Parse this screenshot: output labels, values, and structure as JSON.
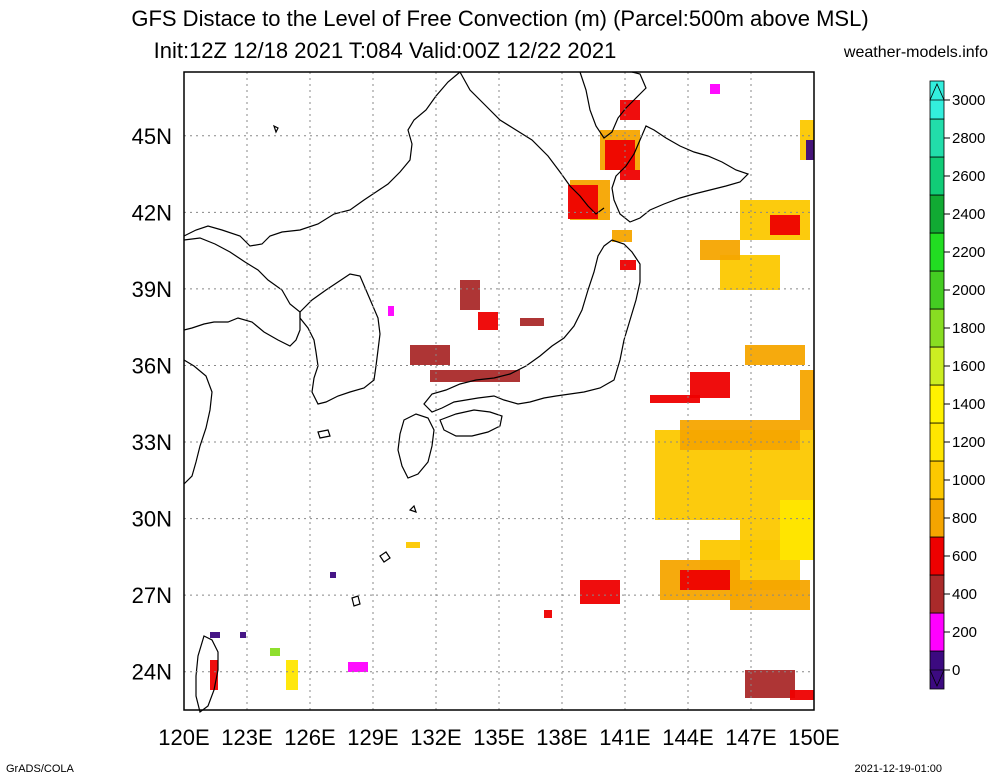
{
  "header": {
    "title_line1": "GFS Distace to the Level of Free Convection (m) (Parcel:500m above MSL)",
    "title_line2": "Init:12Z 12/18 2021 T:084 Valid:00Z 12/22 2021",
    "site": "weather-models.info"
  },
  "footer": {
    "left": "GrADS/COLA",
    "right": "2021-12-19-01:00"
  },
  "map": {
    "lon_range": [
      120,
      150
    ],
    "lat_range": [
      22.5,
      47.5
    ],
    "grid": true,
    "lon_labels": [
      "120E",
      "123E",
      "126E",
      "129E",
      "132E",
      "135E",
      "138E",
      "141E",
      "144E",
      "147E",
      "150E"
    ],
    "lat_labels": [
      "24N",
      "27N",
      "30N",
      "33N",
      "36N",
      "39N",
      "42N",
      "45N"
    ]
  },
  "colorbar": {
    "labels": [
      "0",
      "200",
      "400",
      "600",
      "800",
      "1000",
      "1200",
      "1400",
      "1600",
      "1800",
      "2000",
      "2200",
      "2400",
      "2600",
      "2800",
      "3000"
    ],
    "colors": [
      "#3c0a80",
      "#ff00ff",
      "#aa2a2a",
      "#ee0000",
      "#f5a500",
      "#fcc800",
      "#ffe600",
      "#fff200",
      "#ccee22",
      "#88dd22",
      "#44cc22",
      "#22dd22",
      "#11aa33",
      "#11cc77",
      "#22ddaa",
      "#33eedd"
    ]
  }
}
